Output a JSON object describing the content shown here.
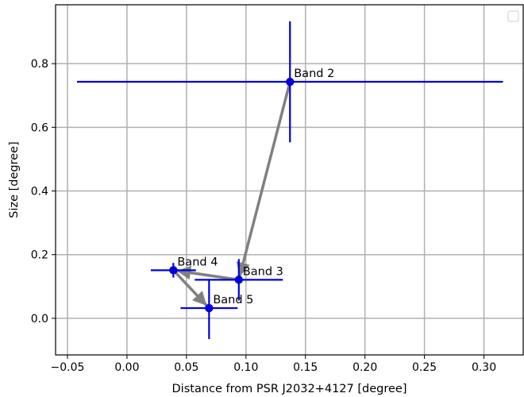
{
  "chart_data": {
    "type": "scatter",
    "title": "",
    "xlabel": "Distance from PSR J2032+4127 [degree]",
    "ylabel": "Size [degree]",
    "xlim": [
      -0.06,
      0.333
    ],
    "ylim": [
      -0.115,
      0.985
    ],
    "x_ticks": [
      -0.05,
      0.0,
      0.05,
      0.1,
      0.15,
      0.2,
      0.25,
      0.3
    ],
    "x_tick_labels": [
      "−0.05",
      "0.00",
      "0.05",
      "0.10",
      "0.15",
      "0.20",
      "0.25",
      "0.30"
    ],
    "y_ticks": [
      0.0,
      0.2,
      0.4,
      0.6,
      0.8
    ],
    "y_tick_labels": [
      "0.0",
      "0.2",
      "0.4",
      "0.6",
      "0.8"
    ],
    "grid": true,
    "legend": {
      "placement": "top-right",
      "entries": []
    },
    "points_color": "#0000dd",
    "path_color": "#808080",
    "points": [
      {
        "label": "Band 2",
        "x": 0.137,
        "y": 0.743,
        "xerr": [
          0.179,
          0.179
        ],
        "yerr": [
          0.19,
          0.19
        ]
      },
      {
        "label": "Band 3",
        "x": 0.094,
        "y": 0.121,
        "xerr": [
          0.037,
          0.037
        ],
        "yerr": [
          0.065,
          0.065
        ]
      },
      {
        "label": "Band 4",
        "x": 0.039,
        "y": 0.151,
        "xerr": [
          0.019,
          0.019
        ],
        "yerr": [
          0.023,
          0.023
        ]
      },
      {
        "label": "Band 5",
        "x": 0.069,
        "y": 0.032,
        "xerr": [
          0.024,
          0.024
        ],
        "yerr": [
          0.097,
          0.087
        ]
      }
    ],
    "path_order": [
      "Band 2",
      "Band 3",
      "Band 4",
      "Band 5"
    ]
  }
}
